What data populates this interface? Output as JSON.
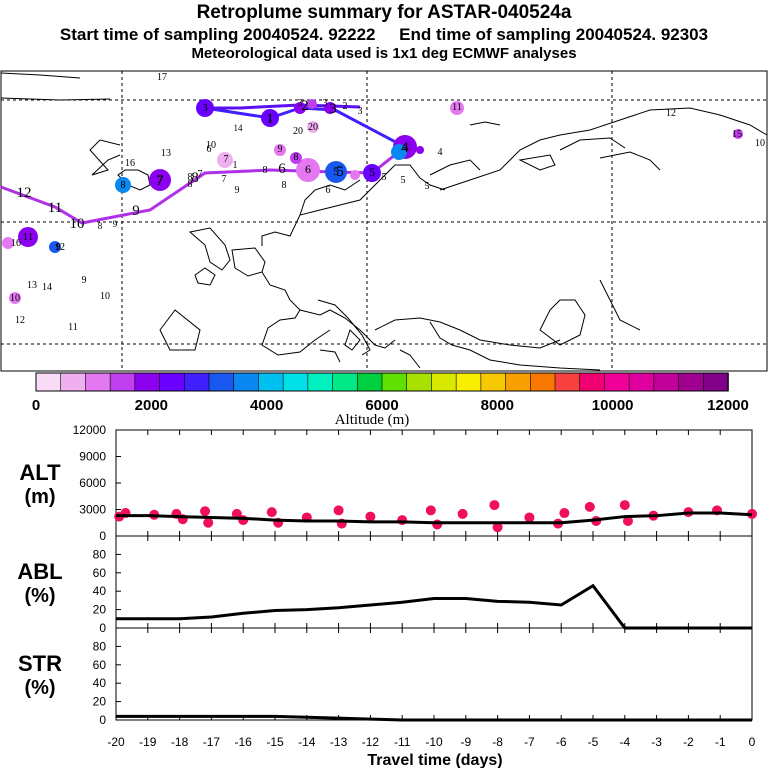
{
  "header": {
    "title": "Retroplume summary for ASTAR-040524a",
    "line2": "Start time of sampling 20040524. 92222     End time of sampling 20040524. 92303",
    "line3": "Meteorological data used is 1x1 deg ECMWF analyses"
  },
  "colorbar": {
    "label": "Altitude (m)",
    "ticks": [
      "0",
      "2000",
      "4000",
      "6000",
      "8000",
      "10000",
      "12000"
    ],
    "colors": [
      "#f8dcf8",
      "#f0b0f0",
      "#e478f0",
      "#c040f0",
      "#8c00f0",
      "#6a00ff",
      "#4020ff",
      "#1858f0",
      "#0888f0",
      "#00c0f0",
      "#00e0e8",
      "#00f0c0",
      "#00e888",
      "#00d040",
      "#60e000",
      "#a8e000",
      "#d8e800",
      "#f8f000",
      "#f8c800",
      "#f8a000",
      "#f87800",
      "#f84040",
      "#f00070",
      "#f00098",
      "#e000a0",
      "#c00098",
      "#a00090",
      "#800088"
    ]
  },
  "map": {
    "track_labels": [
      "12",
      "11",
      "10",
      "9",
      "8",
      "7",
      "6",
      "5",
      "4",
      "3",
      "2",
      "1"
    ],
    "cluster_labels": [
      "17",
      "11",
      "12",
      "13",
      "14",
      "16",
      "10",
      "20",
      "9",
      "8",
      "7",
      "6",
      "5",
      "4",
      "3",
      "2",
      "1",
      "15"
    ]
  },
  "chart_data": [
    {
      "type": "line",
      "name": "ALT",
      "ylabel": "ALT\n(m)",
      "ylabel_line1": "ALT",
      "ylabel_line2": "(m)",
      "x": [
        -20,
        -19,
        -18,
        -17,
        -16,
        -15,
        -14,
        -13,
        -12,
        -11,
        -10,
        -9,
        -8,
        -7,
        -6,
        -5,
        -4,
        -3,
        -2,
        -1,
        0
      ],
      "values": [
        2300,
        2300,
        2200,
        2100,
        2000,
        1800,
        1700,
        1700,
        1600,
        1600,
        1500,
        1500,
        1500,
        1500,
        1500,
        1800,
        2200,
        2300,
        2600,
        2600,
        2400
      ],
      "ylim": [
        0,
        12000
      ],
      "yticks": [
        "0",
        "3000",
        "6000",
        "9000",
        "12000"
      ],
      "marker_color": "#f0105a",
      "markers": [
        {
          "x": -19.9,
          "y": 2200
        },
        {
          "x": -19.7,
          "y": 2600
        },
        {
          "x": -18.8,
          "y": 2400
        },
        {
          "x": -18.1,
          "y": 2500
        },
        {
          "x": -17.9,
          "y": 1900
        },
        {
          "x": -17.2,
          "y": 2800
        },
        {
          "x": -17.1,
          "y": 1500
        },
        {
          "x": -16.2,
          "y": 2500
        },
        {
          "x": -16.0,
          "y": 1800
        },
        {
          "x": -15.1,
          "y": 2700
        },
        {
          "x": -14.9,
          "y": 1500
        },
        {
          "x": -14.0,
          "y": 2100
        },
        {
          "x": -13.0,
          "y": 2900
        },
        {
          "x": -12.9,
          "y": 1400
        },
        {
          "x": -12.0,
          "y": 2200
        },
        {
          "x": -11.0,
          "y": 1800
        },
        {
          "x": -10.1,
          "y": 2900
        },
        {
          "x": -9.9,
          "y": 1300
        },
        {
          "x": -9.1,
          "y": 2500
        },
        {
          "x": -8.1,
          "y": 3500
        },
        {
          "x": -8.0,
          "y": 1000
        },
        {
          "x": -7.0,
          "y": 2100
        },
        {
          "x": -6.1,
          "y": 1400
        },
        {
          "x": -5.9,
          "y": 2600
        },
        {
          "x": -5.1,
          "y": 3300
        },
        {
          "x": -4.9,
          "y": 1700
        },
        {
          "x": -4.0,
          "y": 3500
        },
        {
          "x": -3.9,
          "y": 1700
        },
        {
          "x": -3.1,
          "y": 2300
        },
        {
          "x": -2.0,
          "y": 2700
        },
        {
          "x": -1.1,
          "y": 2900
        },
        {
          "x": 0.0,
          "y": 2500
        }
      ]
    },
    {
      "type": "line",
      "name": "ABL",
      "ylabel": "ABL\n(%)",
      "ylabel_line1": "ABL",
      "ylabel_line2": "(%)",
      "x": [
        -20,
        -19,
        -18,
        -17,
        -16,
        -15,
        -14,
        -13,
        -12,
        -11,
        -10,
        -9,
        -8,
        -7,
        -6,
        -5,
        -4,
        -3,
        -2,
        -1,
        0
      ],
      "values": [
        10,
        10,
        10,
        12,
        16,
        19,
        20,
        22,
        25,
        28,
        32,
        32,
        29,
        28,
        25,
        46,
        0,
        0,
        0,
        0,
        0
      ],
      "ylim": [
        0,
        100
      ],
      "yticks": [
        "0",
        "20",
        "40",
        "60",
        "80"
      ]
    },
    {
      "type": "line",
      "name": "STR",
      "ylabel": "STR\n(%)",
      "ylabel_line1": "STR",
      "ylabel_line2": "(%)",
      "x": [
        -20,
        -19,
        -18,
        -17,
        -16,
        -15,
        -14,
        -13,
        -12,
        -11,
        -10,
        -9,
        -8,
        -7,
        -6,
        -5,
        -4,
        -3,
        -2,
        -1,
        0
      ],
      "values": [
        4,
        4,
        4,
        4,
        4,
        4,
        3,
        2,
        1,
        0,
        0,
        0,
        0,
        0,
        0,
        0,
        0,
        0,
        0,
        0,
        0
      ],
      "ylim": [
        0,
        100
      ],
      "yticks": [
        "0",
        "20",
        "40",
        "60",
        "80"
      ],
      "xlabel": "Travel time (days)",
      "xticks": [
        "-20",
        "-19",
        "-18",
        "-17",
        "-16",
        "-15",
        "-14",
        "-13",
        "-12",
        "-11",
        "-10",
        "-9",
        "-8",
        "-7",
        "-6",
        "-5",
        "-4",
        "-3",
        "-2",
        "-1",
        "0"
      ]
    }
  ]
}
